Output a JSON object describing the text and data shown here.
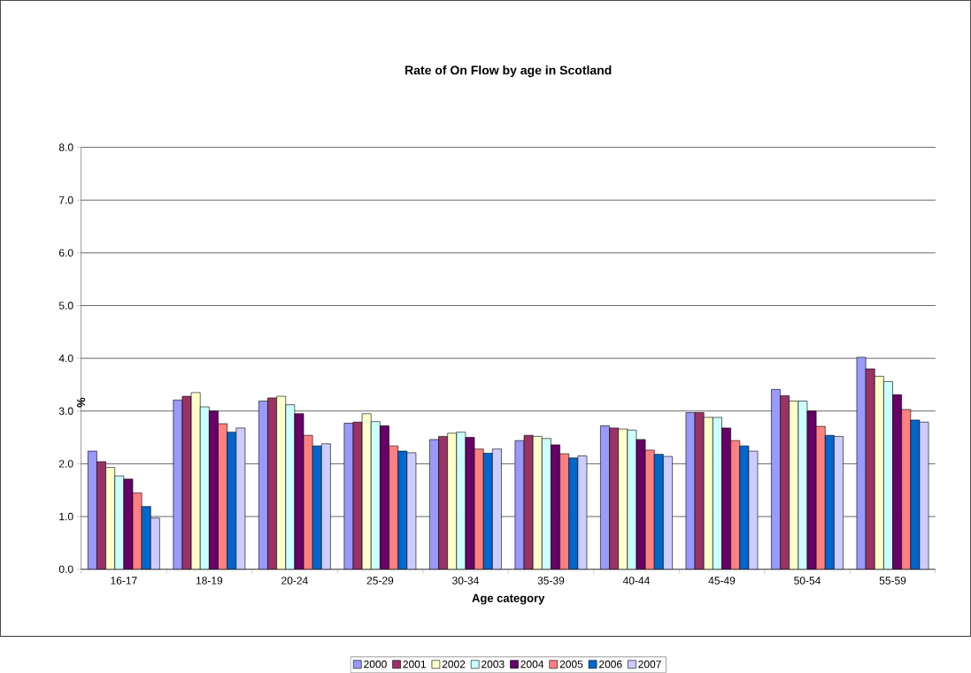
{
  "chart_data": {
    "type": "bar",
    "title": "Rate of On Flow by age in Scotland",
    "xlabel": "Age category",
    "ylabel": "%",
    "categories": [
      "16-17",
      "18-19",
      "20-24",
      "25-29",
      "30-34",
      "35-39",
      "40-44",
      "45-49",
      "50-54",
      "55-59"
    ],
    "series": [
      {
        "name": "2000",
        "color": "#9999ff",
        "values": [
          2.24,
          3.21,
          3.19,
          2.77,
          2.46,
          2.44,
          2.72,
          2.97,
          3.41,
          4.02
        ]
      },
      {
        "name": "2001",
        "color": "#993366",
        "values": [
          2.04,
          3.28,
          3.25,
          2.79,
          2.52,
          2.54,
          2.68,
          2.97,
          3.29,
          3.8
        ]
      },
      {
        "name": "2002",
        "color": "#ffffcc",
        "values": [
          1.93,
          3.35,
          3.28,
          2.95,
          2.58,
          2.52,
          2.66,
          2.88,
          3.19,
          3.66
        ]
      },
      {
        "name": "2003",
        "color": "#ccffff",
        "values": [
          1.77,
          3.08,
          3.12,
          2.8,
          2.6,
          2.48,
          2.64,
          2.88,
          3.19,
          3.56
        ]
      },
      {
        "name": "2004",
        "color": "#660066",
        "values": [
          1.71,
          3.0,
          2.95,
          2.72,
          2.5,
          2.36,
          2.46,
          2.68,
          3.0,
          3.31
        ]
      },
      {
        "name": "2005",
        "color": "#ff8080",
        "values": [
          1.45,
          2.76,
          2.54,
          2.34,
          2.28,
          2.19,
          2.26,
          2.44,
          2.71,
          3.03
        ]
      },
      {
        "name": "2006",
        "color": "#0066cc",
        "values": [
          1.19,
          2.6,
          2.34,
          2.24,
          2.2,
          2.11,
          2.18,
          2.34,
          2.54,
          2.83
        ]
      },
      {
        "name": "2007",
        "color": "#ccccff",
        "values": [
          0.97,
          2.68,
          2.38,
          2.21,
          2.28,
          2.15,
          2.14,
          2.24,
          2.52,
          2.79
        ]
      }
    ],
    "ylim": [
      0,
      8
    ],
    "yticks": [
      {
        "value": 0,
        "label": "0.0"
      },
      {
        "value": 1,
        "label": "1.0"
      },
      {
        "value": 2,
        "label": "2.0"
      },
      {
        "value": 3,
        "label": "3.0"
      },
      {
        "value": 4,
        "label": "4.0"
      },
      {
        "value": 5,
        "label": "5.0"
      },
      {
        "value": 6,
        "label": "6.0"
      },
      {
        "value": 7,
        "label": "7.0"
      },
      {
        "value": 8,
        "label": "8.0"
      }
    ],
    "grid": "y",
    "legend": "bottom"
  }
}
